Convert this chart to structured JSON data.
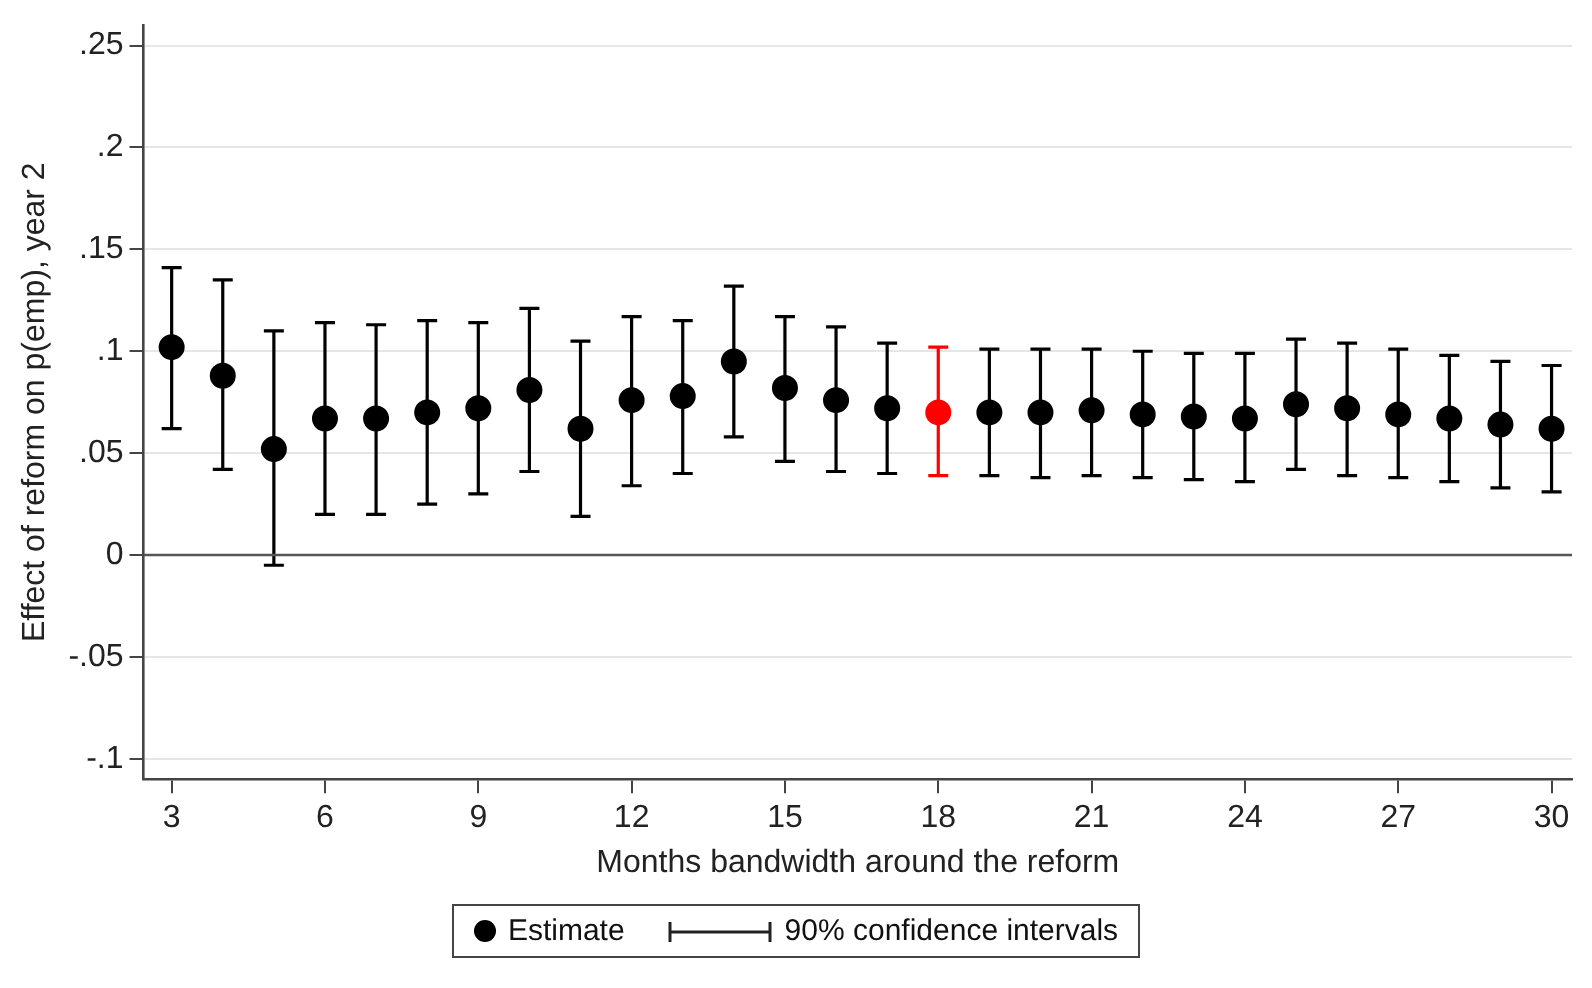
{
  "chart_data": {
    "type": "scatter",
    "xlabel": "Months bandwidth around the reform",
    "ylabel": "Effect of reform on p(emp), year 2",
    "x": [
      3,
      4,
      5,
      6,
      7,
      8,
      9,
      10,
      11,
      12,
      13,
      14,
      15,
      16,
      17,
      18,
      19,
      20,
      21,
      22,
      23,
      24,
      25,
      26,
      27,
      28,
      29,
      30
    ],
    "series": [
      {
        "name": "Estimate",
        "color": "#000000",
        "colors": [
          "#000000",
          "#000000",
          "#000000",
          "#000000",
          "#000000",
          "#000000",
          "#000000",
          "#000000",
          "#000000",
          "#000000",
          "#000000",
          "#000000",
          "#000000",
          "#000000",
          "#000000",
          "#ff0000",
          "#000000",
          "#000000",
          "#000000",
          "#000000",
          "#000000",
          "#000000",
          "#000000",
          "#000000",
          "#000000",
          "#000000",
          "#000000",
          "#000000"
        ],
        "values": [
          0.102,
          0.088,
          0.052,
          0.067,
          0.067,
          0.07,
          0.072,
          0.081,
          0.062,
          0.076,
          0.078,
          0.095,
          0.082,
          0.076,
          0.072,
          0.07,
          0.07,
          0.07,
          0.071,
          0.069,
          0.068,
          0.067,
          0.074,
          0.072,
          0.069,
          0.067,
          0.064,
          0.062
        ],
        "errors": [
          [
            0.062,
            0.141
          ],
          [
            0.042,
            0.135
          ],
          [
            -0.005,
            0.11
          ],
          [
            0.02,
            0.114
          ],
          [
            0.02,
            0.113
          ],
          [
            0.025,
            0.115
          ],
          [
            0.03,
            0.114
          ],
          [
            0.041,
            0.121
          ],
          [
            0.019,
            0.105
          ],
          [
            0.034,
            0.117
          ],
          [
            0.04,
            0.115
          ],
          [
            0.058,
            0.132
          ],
          [
            0.046,
            0.117
          ],
          [
            0.041,
            0.112
          ],
          [
            0.04,
            0.104
          ],
          [
            0.039,
            0.102
          ],
          [
            0.039,
            0.101
          ],
          [
            0.038,
            0.101
          ],
          [
            0.039,
            0.101
          ],
          [
            0.038,
            0.1
          ],
          [
            0.037,
            0.099
          ],
          [
            0.036,
            0.099
          ],
          [
            0.042,
            0.106
          ],
          [
            0.039,
            0.104
          ],
          [
            0.038,
            0.101
          ],
          [
            0.036,
            0.098
          ],
          [
            0.033,
            0.095
          ],
          [
            0.031,
            0.093
          ]
        ]
      }
    ],
    "annotations": [
      "90% confidence intervals"
    ],
    "xlim": [
      2.45,
      30.4
    ],
    "xticks": [
      3,
      6,
      9,
      12,
      15,
      18,
      21,
      24,
      27,
      30
    ],
    "ylim": [
      -0.11,
      0.26
    ],
    "yticks": [
      {
        "value": -0.1,
        "label": "-.1"
      },
      {
        "value": -0.05,
        "label": "-.05"
      },
      {
        "value": 0,
        "label": "0"
      },
      {
        "value": 0.05,
        "label": ".05"
      },
      {
        "value": 0.1,
        "label": ".1"
      },
      {
        "value": 0.15,
        "label": ".15"
      },
      {
        "value": 0.2,
        "label": ".2"
      },
      {
        "value": 0.25,
        "label": ".25"
      }
    ],
    "ref_lines": [
      {
        "axis": "y",
        "value": 0,
        "color": "#555555"
      }
    ],
    "grid": "y",
    "legend": "bottom",
    "marker": "circle"
  }
}
